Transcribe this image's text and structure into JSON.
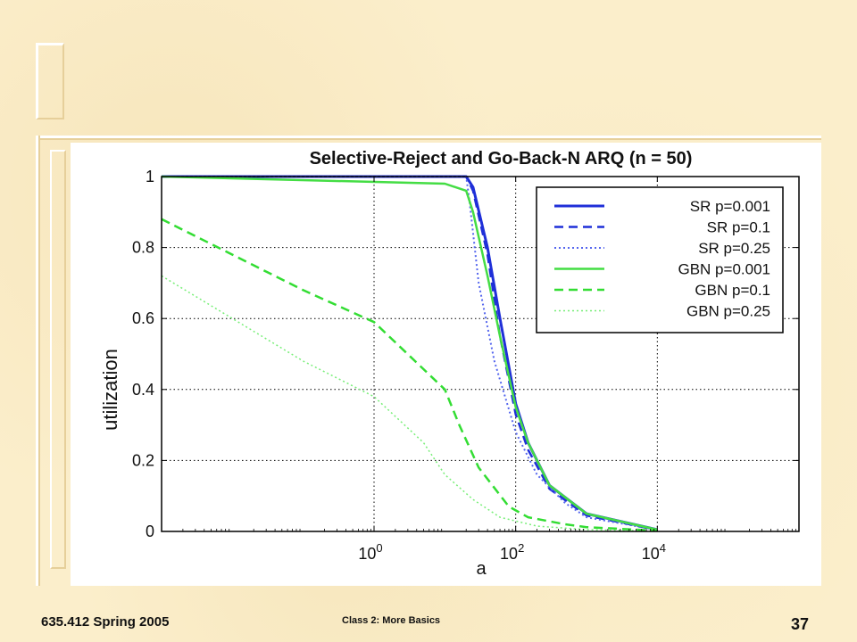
{
  "slide": {
    "footer_left": "635.412 Spring 2005",
    "footer_mid": "Class 2:  More Basics",
    "page_number": "37"
  },
  "chart_data": {
    "type": "line",
    "title": "Selective-Reject and Go-Back-N ARQ (n = 50)",
    "xlabel": "a",
    "ylabel": "utilization",
    "xscale": "log",
    "xlim": [
      0.001,
      1000000
    ],
    "ylim": [
      0,
      1
    ],
    "grid": true,
    "legend_position": "top-right",
    "xticks": [
      {
        "value": 1,
        "base": "10",
        "exp": "0"
      },
      {
        "value": 100,
        "base": "10",
        "exp": "2"
      },
      {
        "value": 10000,
        "base": "10",
        "exp": "4"
      }
    ],
    "yticks": [
      {
        "value": 0,
        "label": "0"
      },
      {
        "value": 0.2,
        "label": "0.2"
      },
      {
        "value": 0.4,
        "label": "0.4"
      },
      {
        "value": 0.6,
        "label": "0.6"
      },
      {
        "value": 0.8,
        "label": "0.8"
      },
      {
        "value": 1,
        "label": "1"
      }
    ],
    "series": [
      {
        "name": "SR p=0.001",
        "color": "#1f2fd8",
        "dash": "solid",
        "width": 3,
        "points": [
          [
            0.001,
            1
          ],
          [
            20,
            1
          ],
          [
            25,
            0.97
          ],
          [
            40,
            0.8
          ],
          [
            60,
            0.6
          ],
          [
            100,
            0.36
          ],
          [
            150,
            0.25
          ],
          [
            300,
            0.13
          ],
          [
            1000,
            0.05
          ],
          [
            10000,
            0.005
          ]
        ]
      },
      {
        "name": "SR p=0.1",
        "color": "#1f2fd8",
        "dash": "dashed",
        "width": 2.5,
        "points": [
          [
            0.001,
            1
          ],
          [
            20,
            1
          ],
          [
            25,
            0.96
          ],
          [
            40,
            0.78
          ],
          [
            60,
            0.55
          ],
          [
            100,
            0.33
          ],
          [
            150,
            0.23
          ],
          [
            300,
            0.12
          ],
          [
            1000,
            0.045
          ],
          [
            10000,
            0.004
          ]
        ]
      },
      {
        "name": "SR p=0.25",
        "color": "#5566ee",
        "dash": "dotted",
        "width": 2,
        "points": [
          [
            0.001,
            1
          ],
          [
            20,
            1
          ],
          [
            22,
            0.94
          ],
          [
            30,
            0.7
          ],
          [
            50,
            0.48
          ],
          [
            100,
            0.28
          ],
          [
            200,
            0.16
          ],
          [
            500,
            0.08
          ],
          [
            1000,
            0.04
          ],
          [
            10000,
            0.004
          ]
        ]
      },
      {
        "name": "GBN p=0.001",
        "color": "#44dd44",
        "dash": "solid",
        "width": 2.5,
        "points": [
          [
            0.001,
            1
          ],
          [
            10,
            0.98
          ],
          [
            20,
            0.96
          ],
          [
            25,
            0.9
          ],
          [
            40,
            0.72
          ],
          [
            60,
            0.55
          ],
          [
            100,
            0.35
          ],
          [
            150,
            0.25
          ],
          [
            300,
            0.13
          ],
          [
            1000,
            0.05
          ],
          [
            10000,
            0.005
          ]
        ]
      },
      {
        "name": "GBN p=0.1",
        "color": "#33dd33",
        "dash": "dashed",
        "width": 2.5,
        "points": [
          [
            0.001,
            0.88
          ],
          [
            0.01,
            0.78
          ],
          [
            0.1,
            0.68
          ],
          [
            1,
            0.59
          ],
          [
            10,
            0.4
          ],
          [
            16,
            0.3
          ],
          [
            30,
            0.18
          ],
          [
            80,
            0.07
          ],
          [
            150,
            0.04
          ],
          [
            500,
            0.02
          ],
          [
            1000,
            0.012
          ],
          [
            10000,
            0.002
          ]
        ]
      },
      {
        "name": "GBN p=0.25",
        "color": "#77ee77",
        "dash": "dotted",
        "width": 1.5,
        "points": [
          [
            0.001,
            0.72
          ],
          [
            0.01,
            0.6
          ],
          [
            0.1,
            0.48
          ],
          [
            1,
            0.38
          ],
          [
            5,
            0.25
          ],
          [
            10,
            0.16
          ],
          [
            25,
            0.09
          ],
          [
            60,
            0.04
          ],
          [
            200,
            0.015
          ],
          [
            1000,
            0.005
          ],
          [
            10000,
            0.001
          ]
        ]
      }
    ]
  }
}
